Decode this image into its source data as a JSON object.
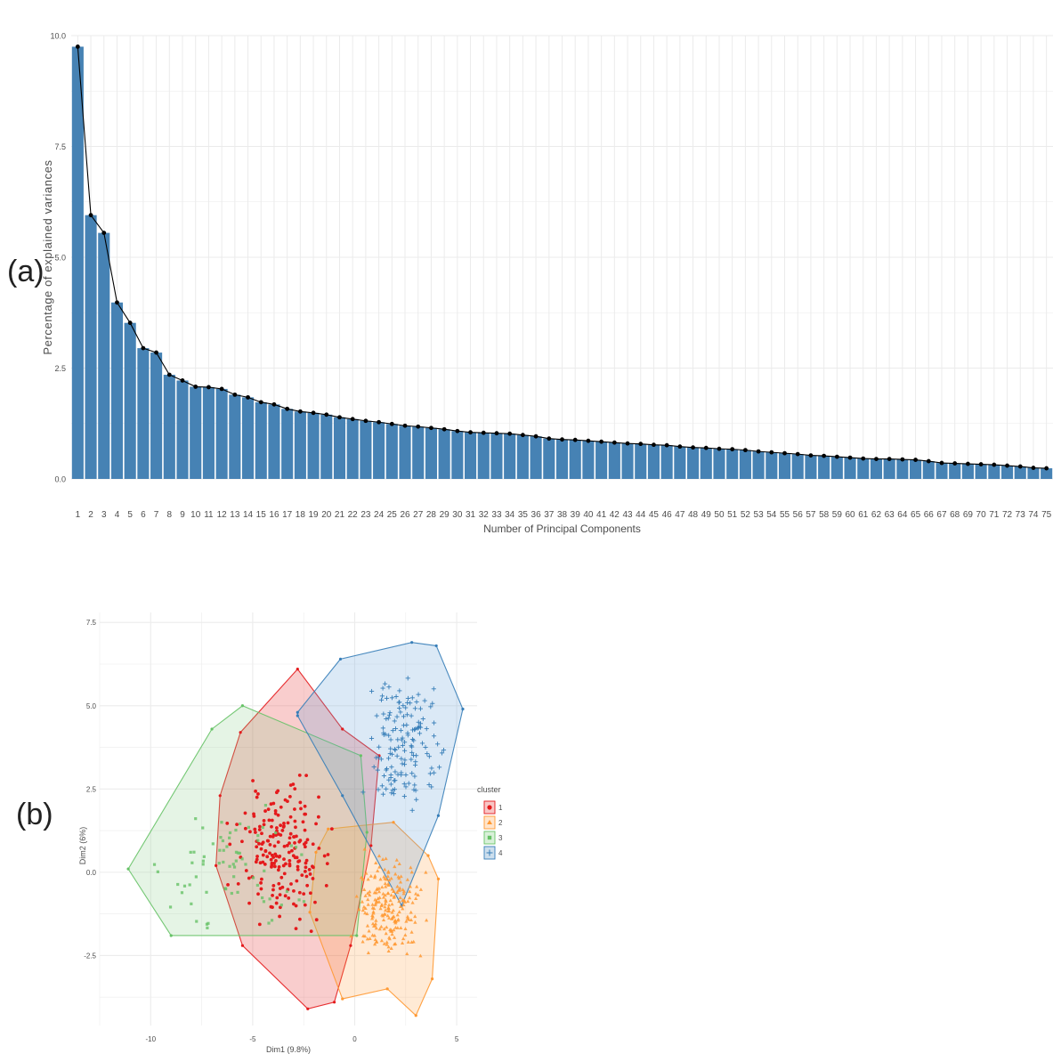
{
  "panel_labels": {
    "a": "(a)",
    "b": "(b)"
  },
  "chart_data": [
    {
      "type": "bar",
      "xlabel": "Number of Principal Components",
      "ylabel": "Percentage of explained variances",
      "ylim": [
        0,
        10
      ],
      "yticks": [
        "0.0",
        "2.5",
        "5.0",
        "7.5",
        "10.0"
      ],
      "grid": true,
      "bar_color": "#4682B4",
      "line_color": "#000000",
      "categories": [
        "1",
        "2",
        "3",
        "4",
        "5",
        "6",
        "7",
        "8",
        "9",
        "10",
        "11",
        "12",
        "13",
        "14",
        "15",
        "16",
        "17",
        "18",
        "19",
        "20",
        "21",
        "22",
        "23",
        "24",
        "25",
        "26",
        "27",
        "28",
        "29",
        "30",
        "31",
        "32",
        "33",
        "34",
        "35",
        "36",
        "37",
        "38",
        "39",
        "40",
        "41",
        "42",
        "43",
        "44",
        "45",
        "46",
        "47",
        "48",
        "49",
        "50",
        "51",
        "52",
        "53",
        "54",
        "55",
        "56",
        "57",
        "58",
        "59",
        "60",
        "61",
        "62",
        "63",
        "64",
        "65",
        "66",
        "67",
        "68",
        "69",
        "70",
        "71",
        "72",
        "73",
        "74",
        "75"
      ],
      "values": [
        9.75,
        5.95,
        5.55,
        3.98,
        3.52,
        2.95,
        2.85,
        2.35,
        2.22,
        2.08,
        2.07,
        2.03,
        1.9,
        1.84,
        1.73,
        1.68,
        1.58,
        1.52,
        1.49,
        1.45,
        1.39,
        1.35,
        1.31,
        1.28,
        1.24,
        1.2,
        1.18,
        1.15,
        1.12,
        1.08,
        1.05,
        1.04,
        1.03,
        1.02,
        0.99,
        0.96,
        0.91,
        0.89,
        0.88,
        0.86,
        0.84,
        0.82,
        0.8,
        0.79,
        0.77,
        0.76,
        0.73,
        0.71,
        0.7,
        0.68,
        0.67,
        0.65,
        0.62,
        0.6,
        0.58,
        0.56,
        0.53,
        0.52,
        0.5,
        0.48,
        0.46,
        0.45,
        0.45,
        0.44,
        0.43,
        0.4,
        0.36,
        0.35,
        0.34,
        0.33,
        0.32,
        0.3,
        0.28,
        0.25,
        0.24
      ]
    },
    {
      "type": "scatter",
      "xlabel": "Dim1 (9.8%)",
      "ylabel": "Dim2 (6%)",
      "xlim": [
        -12.5,
        6
      ],
      "ylim": [
        -4.6,
        7.8
      ],
      "xticks": [
        -10,
        -5,
        0,
        5
      ],
      "xtick_labels": [
        "-10",
        "-5",
        "0",
        "5"
      ],
      "yticks": [
        -2.5,
        0,
        2.5,
        5,
        7.5
      ],
      "ytick_labels": [
        "-2.5",
        "0.0",
        "2.5",
        "5.0",
        "7.5"
      ],
      "legend": {
        "title": "cluster",
        "position": "right",
        "entries": [
          {
            "label": "1",
            "color": "#E41A1C",
            "shape": "circle"
          },
          {
            "label": "2",
            "color": "#FF9933",
            "shape": "triangle"
          },
          {
            "label": "3",
            "color": "#66C266",
            "shape": "square"
          },
          {
            "label": "4",
            "color": "#377EB8",
            "shape": "cross"
          }
        ]
      },
      "clusters": [
        {
          "name": "1",
          "color": "#E41A1C",
          "fill": "#E41A1C",
          "shape": "circle",
          "hull": [
            [
              -2.8,
              6.1
            ],
            [
              -0.6,
              4.3
            ],
            [
              1.2,
              3.5
            ],
            [
              0.8,
              0.8
            ],
            [
              -0.2,
              -2.2
            ],
            [
              -1.0,
              -3.9
            ],
            [
              -2.3,
              -4.1
            ],
            [
              -5.5,
              -2.2
            ],
            [
              -6.8,
              0.2
            ],
            [
              -6.6,
              2.3
            ],
            [
              -5.6,
              4.2
            ]
          ],
          "center": [
            -3.5,
            0.6
          ],
          "spread": [
            1.5,
            1.35
          ],
          "n": 200
        },
        {
          "name": "2",
          "color": "#FF9933",
          "fill": "#FFA040",
          "shape": "triangle",
          "hull": [
            [
              -1.3,
              1.3
            ],
            [
              1.9,
              1.5
            ],
            [
              3.6,
              0.5
            ],
            [
              4.1,
              -0.2
            ],
            [
              3.8,
              -3.2
            ],
            [
              3.0,
              -4.3
            ],
            [
              1.6,
              -3.5
            ],
            [
              -0.6,
              -3.8
            ],
            [
              -2.2,
              -1.2
            ],
            [
              -1.9,
              0.6
            ]
          ],
          "center": [
            1.6,
            -1.1
          ],
          "spread": [
            1.1,
            1.0
          ],
          "n": 220
        },
        {
          "name": "3",
          "color": "#66C266",
          "fill": "#88CC88",
          "shape": "square",
          "hull": [
            [
              -5.5,
              5.0
            ],
            [
              0.3,
              3.5
            ],
            [
              0.6,
              1.2
            ],
            [
              0.1,
              -1.9
            ],
            [
              -9.0,
              -1.9
            ],
            [
              -11.1,
              0.1
            ],
            [
              -7.0,
              4.3
            ]
          ],
          "center": [
            -6.0,
            0.1
          ],
          "spread": [
            2.2,
            1.4
          ],
          "n": 70
        },
        {
          "name": "4",
          "color": "#377EB8",
          "fill": "#5B9BD5",
          "shape": "cross",
          "hull": [
            [
              -2.8,
              4.8
            ],
            [
              -0.7,
              6.4
            ],
            [
              2.8,
              6.9
            ],
            [
              4.0,
              6.8
            ],
            [
              5.3,
              4.9
            ],
            [
              4.1,
              1.7
            ],
            [
              2.3,
              -1.0
            ],
            [
              -0.6,
              2.3
            ],
            [
              -2.8,
              4.7
            ]
          ],
          "center": [
            2.5,
            3.8
          ],
          "spread": [
            1.2,
            1.5
          ],
          "n": 150
        }
      ]
    }
  ]
}
